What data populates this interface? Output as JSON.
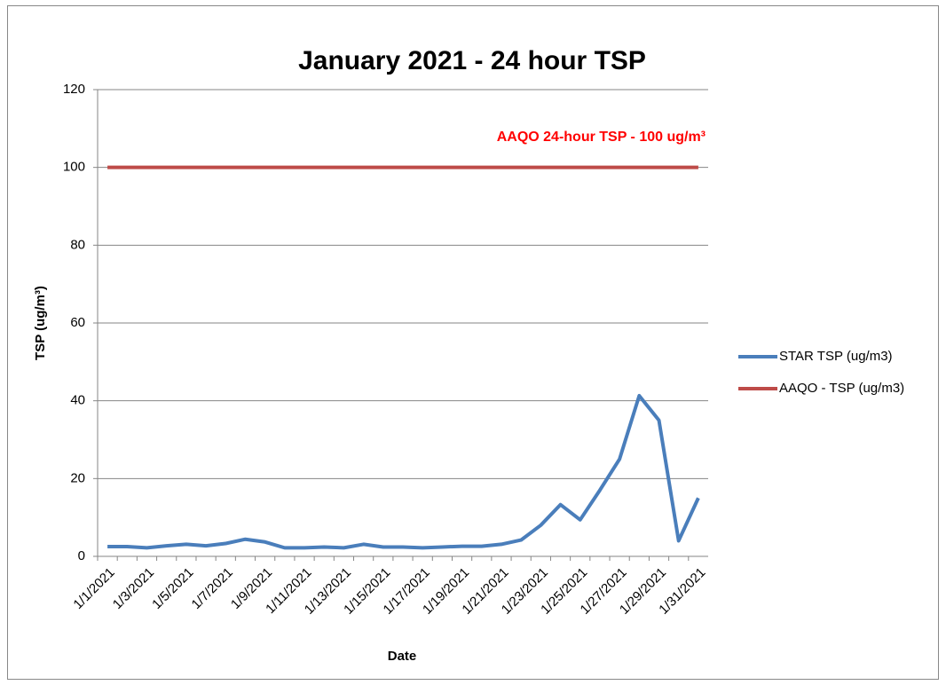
{
  "chart_data": {
    "type": "line",
    "title": "January 2021 - 24 hour TSP",
    "x_label": "Date",
    "y_label": "TSP (ug/m³)",
    "annotation": "AAQO 24-hour TSP - 100 ug/m³",
    "categories": [
      "1/1/2021",
      null,
      "1/3/2021",
      null,
      "1/5/2021",
      null,
      "1/7/2021",
      null,
      "1/9/2021",
      null,
      "1/11/2021",
      null,
      "1/13/2021",
      null,
      "1/15/2021",
      null,
      "1/17/2021",
      null,
      "1/19/2021",
      null,
      "1/21/2021",
      null,
      "1/23/2021",
      null,
      "1/25/2021",
      null,
      "1/27/2021",
      null,
      "1/29/2021",
      null,
      "1/31/2021"
    ],
    "series": [
      {
        "name": "STAR TSP (ug/m3)",
        "color": "#4a7ebb",
        "values": [
          2.5,
          2.5,
          2.2,
          2.7,
          3.1,
          2.7,
          3.3,
          4.4,
          3.7,
          2.2,
          2.2,
          2.4,
          2.2,
          3.1,
          2.4,
          2.4,
          2.2,
          2.4,
          2.6,
          2.6,
          3.1,
          4.2,
          8,
          13.3,
          9.4,
          17,
          25,
          41.3,
          35,
          4,
          15
        ]
      },
      {
        "name": "AAQO - TSP (ug/m3)",
        "color": "#be4b48",
        "values": [
          100,
          100,
          100,
          100,
          100,
          100,
          100,
          100,
          100,
          100,
          100,
          100,
          100,
          100,
          100,
          100,
          100,
          100,
          100,
          100,
          100,
          100,
          100,
          100,
          100,
          100,
          100,
          100,
          100,
          100,
          100
        ]
      }
    ],
    "ylim": [
      0,
      120
    ],
    "yticks": [
      0,
      20,
      40,
      60,
      80,
      100,
      120
    ],
    "grid": true,
    "legend": "right",
    "annotation_color": "#ff0000"
  }
}
